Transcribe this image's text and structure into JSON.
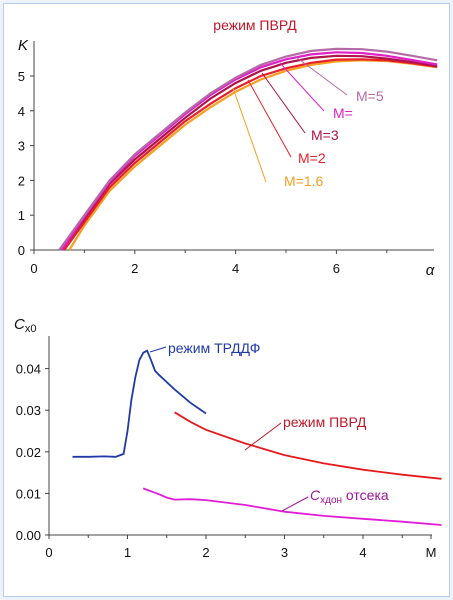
{
  "chart_data": [
    {
      "type": "line",
      "title": "режим ПВРД",
      "ylabel": "K",
      "xlabel": "α",
      "xlim": [
        0,
        10
      ],
      "ylim": [
        0,
        5.5
      ],
      "xticks": [
        "0",
        "2",
        "4",
        "6"
      ],
      "yticks": [
        "0",
        "1",
        "2",
        "3",
        "4",
        "5"
      ],
      "grid": false,
      "series": [
        {
          "name": "M=1.6",
          "color": "#f7a021",
          "x": [
            0.7,
            1.0,
            1.5,
            2.0,
            2.5,
            3.0,
            3.5,
            4.0,
            4.5,
            5.0,
            5.5,
            6.0,
            6.5,
            7.0,
            7.5,
            8.0
          ],
          "y": [
            0.0,
            0.7,
            1.7,
            2.4,
            3.0,
            3.6,
            4.1,
            4.55,
            4.9,
            5.15,
            5.32,
            5.42,
            5.45,
            5.43,
            5.35,
            5.25
          ]
        },
        {
          "name": "M=2",
          "color": "#e8202a",
          "x": [
            0.6,
            1.0,
            1.5,
            2.0,
            2.5,
            3.0,
            3.5,
            4.0,
            4.5,
            5.0,
            5.5,
            6.0,
            6.5,
            7.0,
            7.5,
            8.0
          ],
          "y": [
            0.0,
            0.8,
            1.8,
            2.5,
            3.1,
            3.7,
            4.2,
            4.65,
            5.0,
            5.22,
            5.38,
            5.47,
            5.48,
            5.45,
            5.37,
            5.27
          ]
        },
        {
          "name": "M=3",
          "color": "#b0124a",
          "x": [
            0.55,
            1.0,
            1.5,
            2.0,
            2.5,
            3.0,
            3.5,
            4.0,
            4.5,
            5.0,
            5.5,
            6.0,
            6.5,
            7.0,
            7.5,
            8.0
          ],
          "y": [
            0.0,
            0.9,
            1.9,
            2.6,
            3.2,
            3.8,
            4.35,
            4.8,
            5.15,
            5.38,
            5.52,
            5.58,
            5.57,
            5.5,
            5.4,
            5.28
          ]
        },
        {
          "name": "M=",
          "color": "#e020c8",
          "x": [
            0.55,
            1.0,
            1.5,
            2.0,
            2.5,
            3.0,
            3.5,
            4.0,
            4.5,
            5.0,
            5.5,
            6.0,
            6.5,
            7.0,
            7.5,
            8.0
          ],
          "y": [
            0.0,
            0.95,
            1.95,
            2.7,
            3.3,
            3.9,
            4.45,
            4.9,
            5.25,
            5.48,
            5.62,
            5.68,
            5.66,
            5.58,
            5.46,
            5.33
          ]
        },
        {
          "name": "M=5",
          "color": "#b56aa8",
          "x": [
            0.5,
            1.0,
            1.5,
            2.0,
            2.5,
            3.0,
            3.5,
            4.0,
            4.5,
            5.0,
            5.5,
            6.0,
            6.5,
            7.0,
            7.5,
            8.0
          ],
          "y": [
            0.0,
            1.0,
            2.0,
            2.75,
            3.35,
            3.95,
            4.5,
            4.95,
            5.32,
            5.56,
            5.72,
            5.78,
            5.77,
            5.7,
            5.58,
            5.45
          ]
        }
      ]
    },
    {
      "type": "line",
      "ylabel": "Cx0",
      "xlabel": "M",
      "xlim": [
        0,
        5
      ],
      "ylim": [
        0,
        0.05
      ],
      "xticks": [
        "0",
        "1",
        "2",
        "3",
        "4",
        "M"
      ],
      "yticks": [
        "0.00",
        "0.01",
        "0.02",
        "0.03",
        "0.04"
      ],
      "grid": false,
      "annotations": {
        "trddf": "режим ТРДДФ",
        "pvrd": "режим ПВРД",
        "cx_main": "C",
        "cx_sub": "хдон",
        "cx_rest": " отсека"
      },
      "series": [
        {
          "name": "режим ТРДДФ",
          "color": "#1f3aa8",
          "x": [
            0.3,
            0.5,
            0.7,
            0.85,
            0.95,
            1.0,
            1.05,
            1.1,
            1.15,
            1.2,
            1.25,
            1.3,
            1.35,
            1.4,
            1.6,
            1.8,
            2.0
          ],
          "y": [
            0.0188,
            0.0188,
            0.0189,
            0.0188,
            0.0195,
            0.025,
            0.0325,
            0.038,
            0.042,
            0.0438,
            0.0443,
            0.042,
            0.0395,
            0.0385,
            0.035,
            0.0318,
            0.0292
          ]
        },
        {
          "name": "режим ПВРД",
          "color": "#e31a1c",
          "x": [
            1.6,
            1.8,
            2.0,
            2.5,
            3.0,
            3.5,
            4.0,
            4.5,
            5.0
          ],
          "y": [
            0.0295,
            0.0272,
            0.0253,
            0.022,
            0.0192,
            0.0172,
            0.0157,
            0.0145,
            0.0135
          ]
        },
        {
          "name": "Cхдон отсека",
          "color": "#e21bd8",
          "x": [
            1.2,
            1.3,
            1.4,
            1.5,
            1.6,
            1.8,
            2.0,
            2.5,
            3.0,
            3.5,
            4.0,
            4.5,
            5.0
          ],
          "y": [
            0.0112,
            0.0105,
            0.0098,
            0.009,
            0.0085,
            0.0086,
            0.0084,
            0.0072,
            0.0056,
            0.0046,
            0.0039,
            0.0032,
            0.0024
          ]
        }
      ]
    }
  ]
}
